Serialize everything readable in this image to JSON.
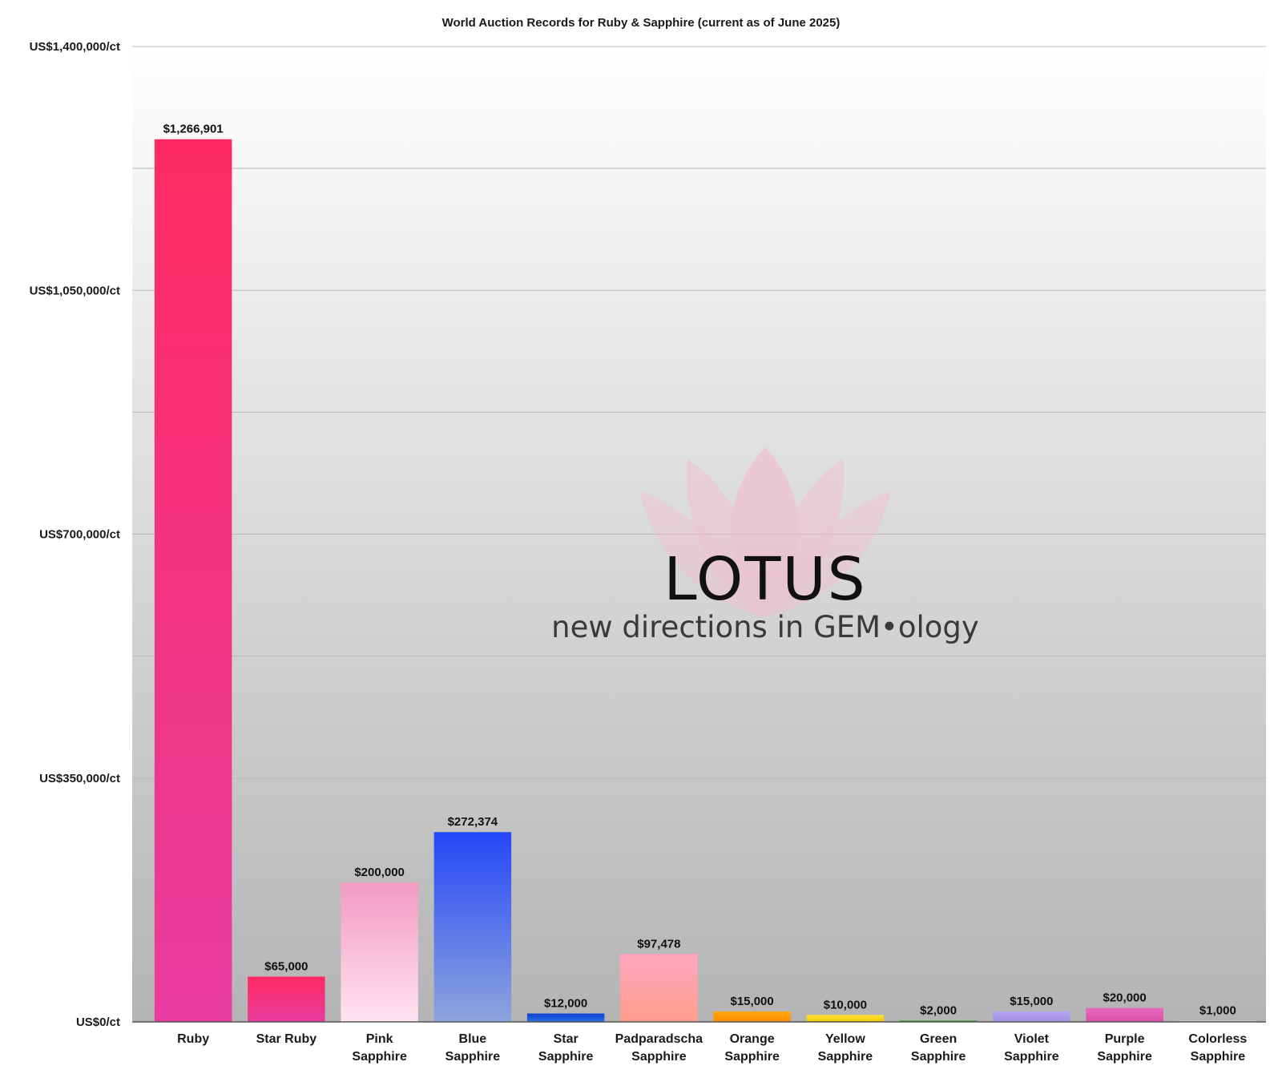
{
  "chart_data": {
    "type": "bar",
    "title": "World Auction Records for Ruby & Sapphire (current as of June 2025)",
    "xlabel": "",
    "ylabel": "",
    "ylim": [
      0,
      1400000
    ],
    "yticks": [
      {
        "value": 0,
        "label": "US$0/ct"
      },
      {
        "value": 350000,
        "label": "US$350,000/ct"
      },
      {
        "value": 700000,
        "label": "US$700,000/ct"
      },
      {
        "value": 1050000,
        "label": "US$1,050,000/ct"
      },
      {
        "value": 1400000,
        "label": "US$1,400,000/ct"
      }
    ],
    "grid": true,
    "legend": "none",
    "categories": [
      [
        "Ruby"
      ],
      [
        "Star Ruby"
      ],
      [
        "Pink",
        "Sapphire"
      ],
      [
        "Blue",
        "Sapphire"
      ],
      [
        "Star",
        "Sapphire"
      ],
      [
        "Padparadscha",
        "Sapphire"
      ],
      [
        "Orange",
        "Sapphire"
      ],
      [
        "Yellow",
        "Sapphire"
      ],
      [
        "Green",
        "Sapphire"
      ],
      [
        "Violet",
        "Sapphire"
      ],
      [
        "Purple",
        "Sapphire"
      ],
      [
        "Colorless",
        "Sapphire"
      ]
    ],
    "values": [
      1266901,
      65000,
      200000,
      272374,
      12000,
      97478,
      15000,
      10000,
      2000,
      15000,
      20000,
      1000
    ],
    "data_labels": [
      "$1,266,901",
      "$65,000",
      "$200,000",
      "$272,374",
      "$12,000",
      "$97,478",
      "$15,000",
      "$10,000",
      "$2,000",
      "$15,000",
      "$20,000",
      "$1,000"
    ],
    "bar_colors": [
      [
        "#ff2a62",
        "#e83d9f"
      ],
      [
        "#ff2a62",
        "#e83d9f"
      ],
      [
        "#f29ac0",
        "#ffe4f1"
      ],
      [
        "#2448f8",
        "#8ea4dc"
      ],
      [
        "#0b3fcf",
        "#2a6ee6"
      ],
      [
        "#ffa6bf",
        "#ff9e8c"
      ],
      [
        "#ffa810",
        "#ff8a00"
      ],
      [
        "#ffe23a",
        "#f0c800"
      ],
      [
        "#3da834",
        "#2e8f2a"
      ],
      [
        "#b7a3ef",
        "#a092e8"
      ],
      [
        "#e66abd",
        "#d94fa8"
      ],
      [
        "#cfcfcf",
        "#bdbdbd"
      ]
    ]
  },
  "watermark": {
    "name": "LOTUS",
    "tagline": "new directions in GEM•ology",
    "petal_color": "#f6b7cf"
  }
}
